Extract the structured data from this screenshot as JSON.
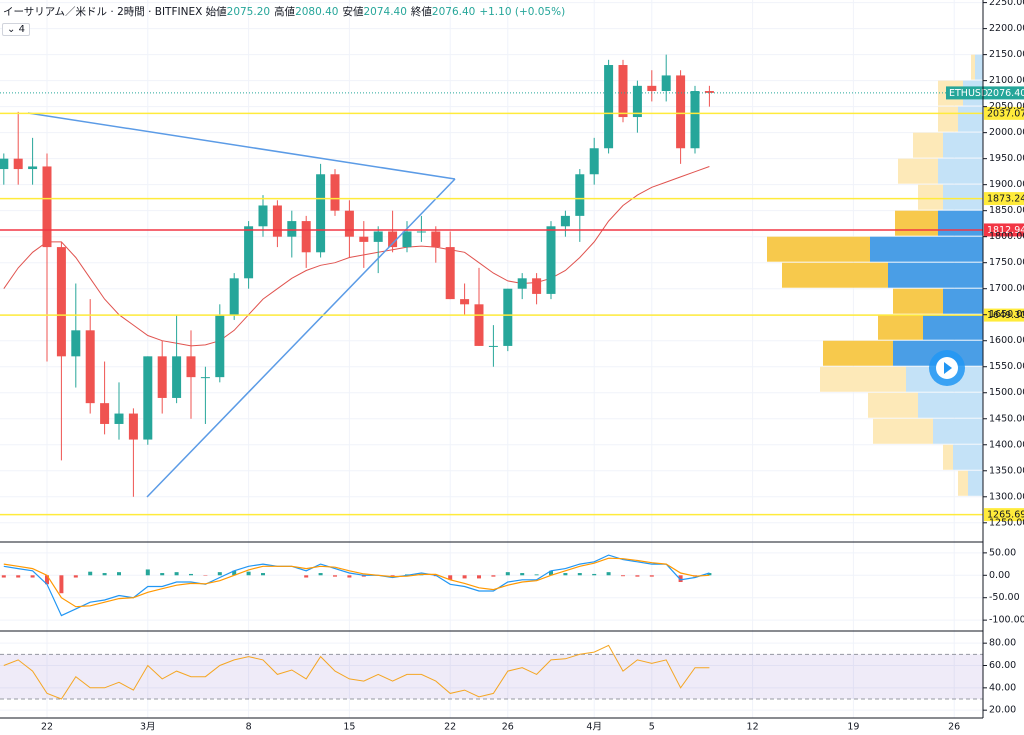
{
  "header": {
    "title": "イーサリアム／米ドル · 2時間 · BITFINEX",
    "fields": [
      {
        "label": "始値",
        "value": "2075.20"
      },
      {
        "label": "高値",
        "value": "2080.40"
      },
      {
        "label": "安値",
        "value": "2074.40"
      },
      {
        "label": "終値",
        "value": "2076.40"
      },
      {
        "label": "",
        "value": "+1.10 (+0.05%)"
      }
    ],
    "badge": "4"
  },
  "chart_data": {
    "type": "candlestick",
    "categories": [
      null,
      null,
      null,
      "22",
      null,
      null,
      null,
      null,
      null,
      null,
      "3月",
      null,
      null,
      null,
      null,
      null,
      null,
      "8",
      null,
      null,
      null,
      null,
      null,
      null,
      "15",
      null,
      null,
      null,
      null,
      null,
      null,
      "22",
      null,
      null,
      null,
      "26",
      null,
      null,
      null,
      null,
      null,
      "4月",
      null,
      null,
      null,
      "5",
      null,
      null,
      null,
      null,
      null,
      null,
      "12",
      null,
      null,
      null,
      null,
      null,
      null,
      "19",
      null,
      null,
      null,
      null,
      null,
      null,
      "26",
      null,
      null
    ],
    "open": [
      1930,
      1950,
      1930,
      1935,
      1780,
      1570,
      1620,
      1480,
      1440,
      1460,
      1410,
      1570,
      1490,
      1570,
      1530,
      1530,
      1650,
      1720,
      1820,
      1860,
      1800,
      1830,
      1770,
      1920,
      1850,
      1800,
      1790,
      1810,
      1780,
      1810,
      1810,
      1780,
      1680,
      1670,
      1590,
      1590,
      1700,
      1720,
      1690,
      1820,
      1840,
      1920,
      1970,
      2130,
      2030,
      2090,
      2080,
      2110,
      1970,
      2080,
      null,
      null,
      null,
      null,
      null,
      null,
      null,
      null,
      null,
      null,
      null,
      null,
      null,
      null,
      null,
      null,
      null,
      null,
      null
    ],
    "high": [
      1960,
      2040,
      1990,
      1960,
      1790,
      1710,
      1680,
      1560,
      1520,
      1470,
      1570,
      1600,
      1650,
      1620,
      1550,
      1670,
      1730,
      1830,
      1880,
      1870,
      1850,
      1840,
      1940,
      1930,
      1870,
      1830,
      1820,
      1850,
      1830,
      1840,
      1820,
      1810,
      1710,
      1740,
      1630,
      1700,
      1730,
      1730,
      1830,
      1850,
      1930,
      1990,
      2140,
      2140,
      2100,
      2120,
      2150,
      2120,
      2090,
      2090,
      null,
      null,
      null,
      null,
      null,
      null,
      null,
      null,
      null,
      null,
      null,
      null,
      null,
      null,
      null,
      null,
      null,
      null,
      null
    ],
    "low": [
      1900,
      1900,
      1900,
      1560,
      1370,
      1510,
      1460,
      1420,
      1410,
      1300,
      1400,
      1460,
      1480,
      1450,
      1440,
      1520,
      1640,
      1700,
      1800,
      1780,
      1760,
      1740,
      1760,
      1840,
      1760,
      1740,
      1730,
      1770,
      1770,
      1790,
      1750,
      1680,
      1650,
      1590,
      1550,
      1580,
      1680,
      1670,
      1680,
      1800,
      1790,
      1900,
      1960,
      2020,
      2000,
      2060,
      2060,
      1940,
      1960,
      2050,
      null,
      null,
      null,
      null,
      null,
      null,
      null,
      null,
      null,
      null,
      null,
      null,
      null,
      null,
      null,
      null,
      null,
      null,
      null
    ],
    "close": [
      1950,
      1930,
      1935,
      1780,
      1570,
      1620,
      1480,
      1440,
      1460,
      1410,
      1570,
      1490,
      1570,
      1530,
      1530,
      1650,
      1720,
      1820,
      1860,
      1800,
      1830,
      1770,
      1920,
      1850,
      1800,
      1790,
      1810,
      1780,
      1810,
      1810,
      1780,
      1680,
      1670,
      1590,
      1590,
      1700,
      1720,
      1690,
      1820,
      1840,
      1920,
      1970,
      2130,
      2030,
      2090,
      2080,
      2110,
      1970,
      2080,
      2076.4,
      null,
      null,
      null,
      null,
      null,
      null,
      null,
      null,
      null,
      null,
      null,
      null,
      null,
      null,
      null,
      null,
      null,
      null,
      null
    ],
    "up_color": "#26a69a",
    "down_color": "#ef5350",
    "moving_average": {
      "color": "#e0534f",
      "values": [
        1700,
        1740,
        1770,
        1790,
        1790,
        1760,
        1720,
        1680,
        1650,
        1630,
        1610,
        1600,
        1595,
        1590,
        1592,
        1600,
        1620,
        1650,
        1680,
        1700,
        1720,
        1735,
        1745,
        1750,
        1760,
        1765,
        1770,
        1775,
        1780,
        1782,
        1780,
        1775,
        1770,
        1750,
        1730,
        1715,
        1710,
        1712,
        1720,
        1735,
        1760,
        1790,
        1830,
        1860,
        1880,
        1895,
        1905,
        1915,
        1925,
        1935,
        null,
        null,
        null,
        null,
        null,
        null,
        null,
        null,
        null,
        null,
        null,
        null,
        null,
        null,
        null,
        null,
        null,
        null,
        null
      ]
    },
    "ylim": [
      1215,
      2255
    ],
    "yticks": [
      {
        "value": 2250,
        "label": "2250.00"
      },
      {
        "value": 2200,
        "label": "2200.00"
      },
      {
        "value": 2150,
        "label": "2150.00"
      },
      {
        "value": 2100,
        "label": "2100.00"
      },
      {
        "value": 2050,
        "label": "2050.00"
      },
      {
        "value": 2000,
        "label": "2000.00"
      },
      {
        "value": 1950,
        "label": "1950.00"
      },
      {
        "value": 1900,
        "label": "1900.00"
      },
      {
        "value": 1850,
        "label": "1850.00"
      },
      {
        "value": 1800,
        "label": "1800.00"
      },
      {
        "value": 1750,
        "label": "1750.00"
      },
      {
        "value": 1700,
        "label": "1700.00"
      },
      {
        "value": 1650,
        "label": "1650.00"
      },
      {
        "value": 1600,
        "label": "1600.00"
      },
      {
        "value": 1550,
        "label": "1550.00"
      },
      {
        "value": 1500,
        "label": "1500.00"
      },
      {
        "value": 1450,
        "label": "1450.00"
      },
      {
        "value": 1400,
        "label": "1400.00"
      },
      {
        "value": 1350,
        "label": "1350.00"
      },
      {
        "value": 1300,
        "label": "1300.00"
      },
      {
        "value": 1250,
        "label": "1250.00"
      }
    ],
    "grid": true,
    "price_lines": [
      {
        "price": 2037.07,
        "color": "#ffeb3b"
      },
      {
        "price": 1873.24,
        "color": "#ffeb3b"
      },
      {
        "price": 1812.94,
        "color": "#f23645"
      },
      {
        "price": {
          "value": 1649.3,
          "label": "1649.30"
        },
        "color": "#ffeb3b"
      },
      {
        "price": 1265.69,
        "color": "#ffeb3b"
      }
    ],
    "last_price": {
      "name": "ETHUSD",
      "price": {
        "value": 2076.4,
        "label": "2076.40"
      },
      "color": "#26a69a"
    },
    "volume_profile": {
      "bins": [
        1300,
        1350,
        1400,
        1450,
        1500,
        1550,
        1600,
        1650,
        1700,
        1750,
        1800,
        1850,
        1900,
        1950,
        2000,
        2050,
        2100,
        2150
      ],
      "up": [
        15,
        30,
        50,
        65,
        77,
        90,
        60,
        40,
        95,
        113,
        45,
        40,
        45,
        40,
        25,
        20,
        8
      ],
      "down": [
        10,
        10,
        60,
        50,
        86,
        70,
        45,
        50,
        106,
        103,
        43,
        25,
        40,
        30,
        20,
        25,
        4
      ],
      "value_area": [
        1550,
        1850
      ],
      "colors": {
        "up": "#4a9ee6",
        "down": "#f7c94c",
        "up_light": "#c4e2f7",
        "down_light": "#fde9b8"
      }
    },
    "macd": {
      "ylim": [
        -122,
        72
      ],
      "yticks": [
        {
          "value": 50,
          "label": "50.00"
        },
        {
          "value": 0,
          "label": "0.00"
        },
        {
          "value": -50,
          "label": "-50.00"
        },
        {
          "value": -100,
          "label": "-100.00"
        }
      ],
      "line": [
        20,
        15,
        10,
        -20,
        -90,
        -75,
        -60,
        -55,
        -45,
        -50,
        -25,
        -25,
        -15,
        -15,
        -20,
        -5,
        10,
        20,
        25,
        20,
        20,
        10,
        25,
        15,
        5,
        0,
        0,
        -5,
        0,
        5,
        0,
        -20,
        -25,
        -35,
        -35,
        -15,
        -10,
        -10,
        10,
        15,
        25,
        30,
        45,
        35,
        30,
        25,
        25,
        -10,
        -5,
        5,
        null,
        null,
        null,
        null,
        null,
        null,
        null,
        null,
        null,
        null,
        null,
        null,
        null,
        null,
        null,
        null,
        null,
        null,
        null
      ],
      "signal": [
        25,
        20,
        15,
        0,
        -50,
        -70,
        -68,
        -60,
        -52,
        -50,
        -38,
        -30,
        -22,
        -18,
        -19,
        -12,
        0,
        12,
        20,
        20,
        20,
        15,
        20,
        18,
        10,
        3,
        0,
        -3,
        -2,
        2,
        2,
        -10,
        -18,
        -28,
        -32,
        -22,
        -15,
        -12,
        0,
        10,
        20,
        27,
        38,
        37,
        33,
        28,
        25,
        5,
        -2,
        0,
        null,
        null,
        null,
        null,
        null,
        null,
        null,
        null,
        null,
        null,
        null,
        null,
        null,
        null,
        null,
        null,
        null,
        null,
        null
      ],
      "histogram": [
        -5,
        -5,
        -5,
        -20,
        -40,
        -5,
        8,
        5,
        7,
        0,
        13,
        5,
        7,
        3,
        -1,
        7,
        10,
        8,
        5,
        0,
        0,
        -5,
        5,
        -3,
        -5,
        -3,
        0,
        -2,
        2,
        3,
        -2,
        -10,
        -7,
        -7,
        -3,
        7,
        5,
        2,
        10,
        5,
        5,
        3,
        7,
        -2,
        -3,
        -3,
        0,
        -15,
        -3,
        5,
        null,
        null,
        null,
        null,
        null,
        null,
        null,
        null,
        null,
        null,
        null,
        null,
        null,
        null,
        null,
        null,
        null,
        null,
        null
      ],
      "line_color": "#2196f3",
      "signal_color": "#ff9800"
    },
    "rsi": {
      "ylim": [
        13,
        90
      ],
      "yticks": [
        {
          "value": 80,
          "label": "80.00"
        },
        {
          "value": 60,
          "label": "60.00"
        },
        {
          "value": 40,
          "label": "40.00"
        },
        {
          "value": 20,
          "label": "20.00"
        }
      ],
      "values": [
        60,
        65,
        55,
        35,
        30,
        50,
        40,
        40,
        45,
        38,
        60,
        48,
        55,
        50,
        50,
        60,
        65,
        68,
        65,
        52,
        56,
        48,
        68,
        55,
        48,
        46,
        52,
        46,
        52,
        52,
        46,
        35,
        38,
        32,
        35,
        55,
        58,
        52,
        65,
        66,
        70,
        72,
        78,
        55,
        65,
        62,
        65,
        40,
        58,
        58,
        null,
        null,
        null,
        null,
        null,
        null,
        null,
        null,
        null,
        null,
        null,
        null,
        null,
        null,
        null,
        null,
        null,
        null,
        null
      ],
      "band": [
        30,
        70
      ],
      "color": "#f5a623",
      "band_color": "#7e57c2"
    }
  }
}
